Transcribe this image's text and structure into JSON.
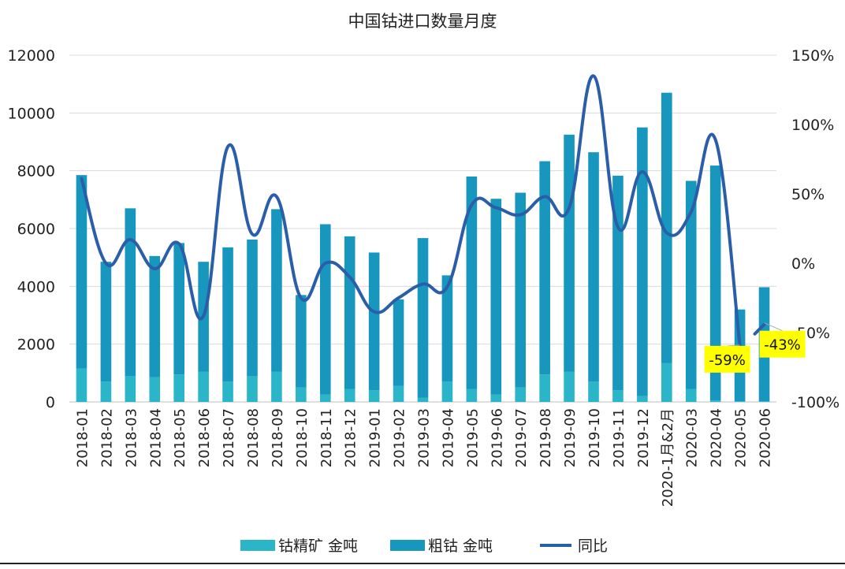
{
  "chart_data": {
    "type": "bar",
    "title": "中国钴进口数量月度",
    "categories": [
      "2018-01",
      "2018-02",
      "2018-03",
      "2018-04",
      "2018-05",
      "2018-06",
      "2018-07",
      "2018-08",
      "2018-09",
      "2018-10",
      "2018-11",
      "2018-12",
      "2019-01",
      "2019-02",
      "2019-03",
      "2019-04",
      "2019-05",
      "2019-06",
      "2019-07",
      "2019-08",
      "2019-09",
      "2019-10",
      "2019-11",
      "2019-12",
      "2020-1月&2月",
      "2020-03",
      "2020-04",
      "2020-05",
      "2020-06"
    ],
    "series": [
      {
        "name": "钴精矿 金吨",
        "kind": "bar",
        "stack": "main",
        "axis": "left",
        "color": "#2bb5c8",
        "values": [
          1150,
          700,
          900,
          850,
          950,
          1050,
          700,
          900,
          1050,
          500,
          250,
          450,
          400,
          550,
          150,
          700,
          450,
          250,
          500,
          950,
          1050,
          700,
          400,
          200,
          1350,
          450,
          50,
          20,
          20
        ]
      },
      {
        "name": "粗钴 金吨",
        "kind": "bar",
        "stack": "main",
        "axis": "left",
        "color": "#1797be",
        "values": [
          6700,
          4150,
          5800,
          4200,
          4550,
          3800,
          4650,
          4720,
          5620,
          3200,
          5900,
          5280,
          4770,
          3000,
          5520,
          3680,
          7350,
          6780,
          6740,
          7380,
          8200,
          7940,
          7430,
          9300,
          9350,
          7200,
          8130,
          3180,
          3950
        ]
      },
      {
        "name": "同比",
        "kind": "line",
        "axis": "right",
        "color": "#2a5ea8",
        "values": [
          61,
          0,
          17,
          -4,
          14,
          -38,
          84,
          21,
          48,
          -25,
          0,
          -10,
          -35,
          -25,
          -15,
          -17,
          42,
          40,
          35,
          48,
          40,
          135,
          26,
          66,
          22,
          37,
          89,
          -59,
          -43
        ]
      }
    ],
    "y_left": {
      "min": 0,
      "max": 12000,
      "ticks": [
        "0",
        "2000",
        "4000",
        "6000",
        "8000",
        "10000",
        "12000"
      ]
    },
    "y_right": {
      "min": -100,
      "max": 150,
      "ticks": [
        "-100%",
        "-50%",
        "0%",
        "50%",
        "100%",
        "150%"
      ]
    },
    "annotations": [
      {
        "category": "2020-05",
        "text": "-59%",
        "bg": "#ffff00"
      },
      {
        "category": "2020-06",
        "text": "-43%",
        "bg": "#ffff00"
      }
    ],
    "grid": true,
    "legend_position": "bottom"
  }
}
